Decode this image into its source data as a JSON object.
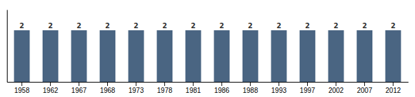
{
  "chart_data": {
    "type": "bar",
    "categories": [
      "1958",
      "1962",
      "1967",
      "1968",
      "1973",
      "1978",
      "1981",
      "1986",
      "1988",
      "1993",
      "1997",
      "2002",
      "2007",
      "2012"
    ],
    "values": [
      2,
      2,
      2,
      2,
      2,
      2,
      2,
      2,
      2,
      2,
      2,
      2,
      2,
      2
    ],
    "color": "#4a6582",
    "ylim": [
      0,
      2.8
    ],
    "data_labels": true,
    "tick_labels": "x",
    "grid": false
  }
}
